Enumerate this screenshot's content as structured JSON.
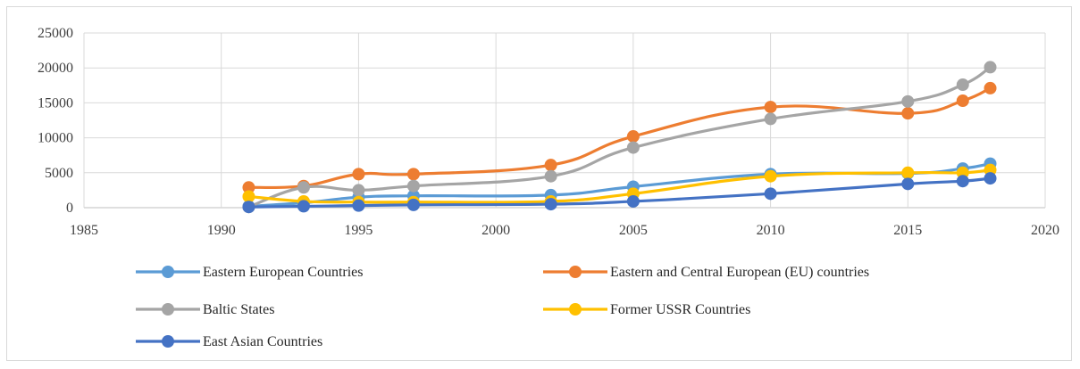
{
  "chart_data": {
    "type": "line",
    "title": "",
    "xlabel": "",
    "ylabel": "",
    "xlim": [
      1985,
      2020
    ],
    "ylim": [
      0,
      25000
    ],
    "x_ticks": [
      1985,
      1990,
      1995,
      2000,
      2005,
      2010,
      2015,
      2020
    ],
    "y_ticks": [
      0,
      5000,
      10000,
      15000,
      20000,
      25000
    ],
    "grid": {
      "horizontal": true,
      "vertical": true
    },
    "smooth": true,
    "legend_position": "bottom",
    "x": [
      1991,
      1993,
      1995,
      1997,
      2002,
      2005,
      2010,
      2015,
      2017,
      2018
    ],
    "series": [
      {
        "name": "Eastern European Countries",
        "color": "#5B9BD5",
        "values": [
          200,
          700,
          1500,
          1700,
          1800,
          3000,
          4800,
          4900,
          5600,
          6300
        ]
      },
      {
        "name": "Eastern and Central European (EU) countries",
        "color": "#ED7D31",
        "values": [
          2900,
          3100,
          4800,
          4800,
          6100,
          10200,
          14400,
          13500,
          15300,
          17100
        ]
      },
      {
        "name": "Baltic States",
        "color": "#A5A5A5",
        "values": [
          100,
          2900,
          2500,
          3100,
          4500,
          8600,
          12700,
          15200,
          17600,
          20100
        ]
      },
      {
        "name": "Former USSR Countries",
        "color": "#FFC000",
        "values": [
          1600,
          900,
          800,
          800,
          900,
          2000,
          4500,
          5000,
          5000,
          5400
        ]
      },
      {
        "name": "East Asian Countries",
        "color": "#4472C4",
        "values": [
          100,
          200,
          300,
          400,
          500,
          900,
          2000,
          3400,
          3800,
          4200
        ]
      }
    ]
  }
}
